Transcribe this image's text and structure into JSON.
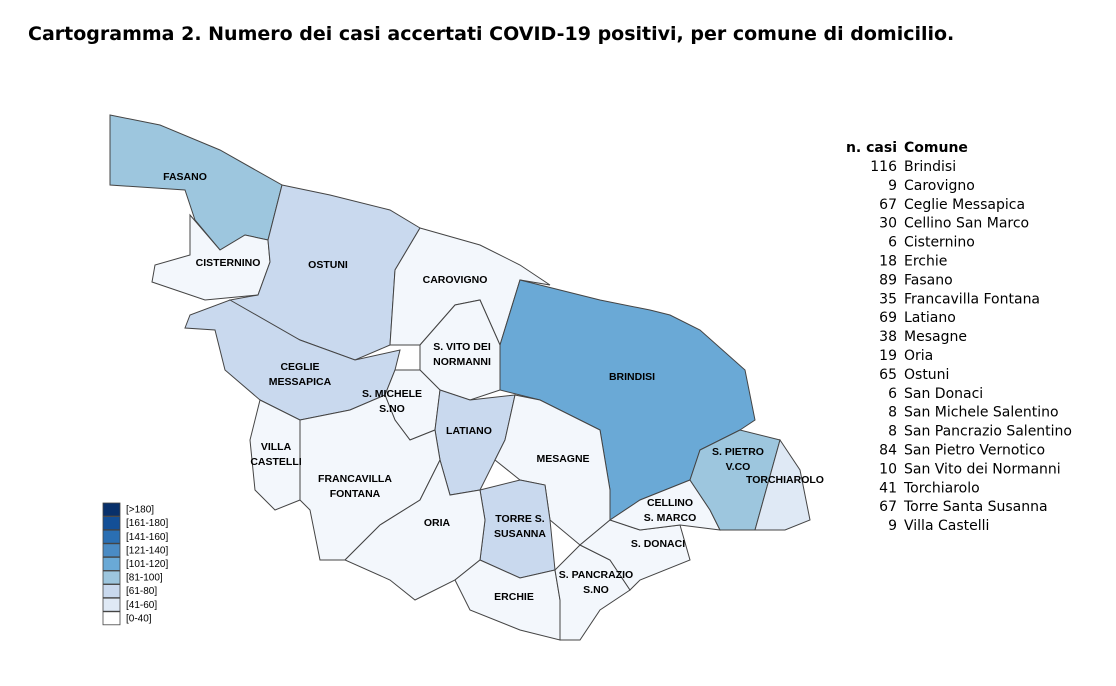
{
  "title": "Cartogramma 2. Numero dei casi accertati COVID-19 positivi, per comune di domicilio.",
  "map_labels": [
    [
      "FASANO"
    ],
    [
      "CISTERNINO"
    ],
    [
      "OSTUNI"
    ],
    [
      "CAROVIGNO"
    ],
    [
      "CEGLIE",
      "MESSAPICA"
    ],
    [
      "S. VITO DEI",
      "NORMANNI"
    ],
    [
      "S. MICHELE",
      "S.NO"
    ],
    [
      "BRINDISI"
    ],
    [
      "LATIANO"
    ],
    [
      "VILLA",
      "CASTELLI"
    ],
    [
      "FRANCAVILLA",
      "FONTANA"
    ],
    [
      "MESAGNE"
    ],
    [
      "S. PIETRO",
      "V.CO"
    ],
    [
      "TORCHIAROLO"
    ],
    [
      "ORIA"
    ],
    [
      "TORRE S.",
      "SUSANNA"
    ],
    [
      "CELLINO",
      "S. MARCO"
    ],
    [
      "S. DONACI"
    ],
    [
      "S. PANCRAZIO",
      "S.NO"
    ],
    [
      "ERCHIE"
    ]
  ],
  "legend": [
    "[>180]",
    "[161-180]",
    "[141-160]",
    "[121-140]",
    "[101-120]",
    "[81-100]",
    "[61-80]",
    "[41-60]",
    "[0-40]"
  ],
  "table": {
    "header": [
      "n. casi",
      "Comune"
    ],
    "rows": [
      [
        116,
        "Brindisi"
      ],
      [
        9,
        "Carovigno"
      ],
      [
        67,
        "Ceglie Messapica"
      ],
      [
        30,
        "Cellino San Marco"
      ],
      [
        6,
        "Cisternino"
      ],
      [
        18,
        "Erchie"
      ],
      [
        89,
        "Fasano"
      ],
      [
        35,
        "Francavilla Fontana"
      ],
      [
        69,
        "Latiano"
      ],
      [
        38,
        "Mesagne"
      ],
      [
        19,
        "Oria"
      ],
      [
        65,
        "Ostuni"
      ],
      [
        6,
        "San Donaci"
      ],
      [
        8,
        "San Michele Salentino"
      ],
      [
        8,
        "San Pancrazio Salentino"
      ],
      [
        84,
        "San Pietro Vernotico"
      ],
      [
        10,
        "San Vito dei Normanni"
      ],
      [
        41,
        "Torchiarolo"
      ],
      [
        67,
        "Torre Santa Susanna"
      ],
      [
        9,
        "Villa Castelli"
      ]
    ]
  }
}
